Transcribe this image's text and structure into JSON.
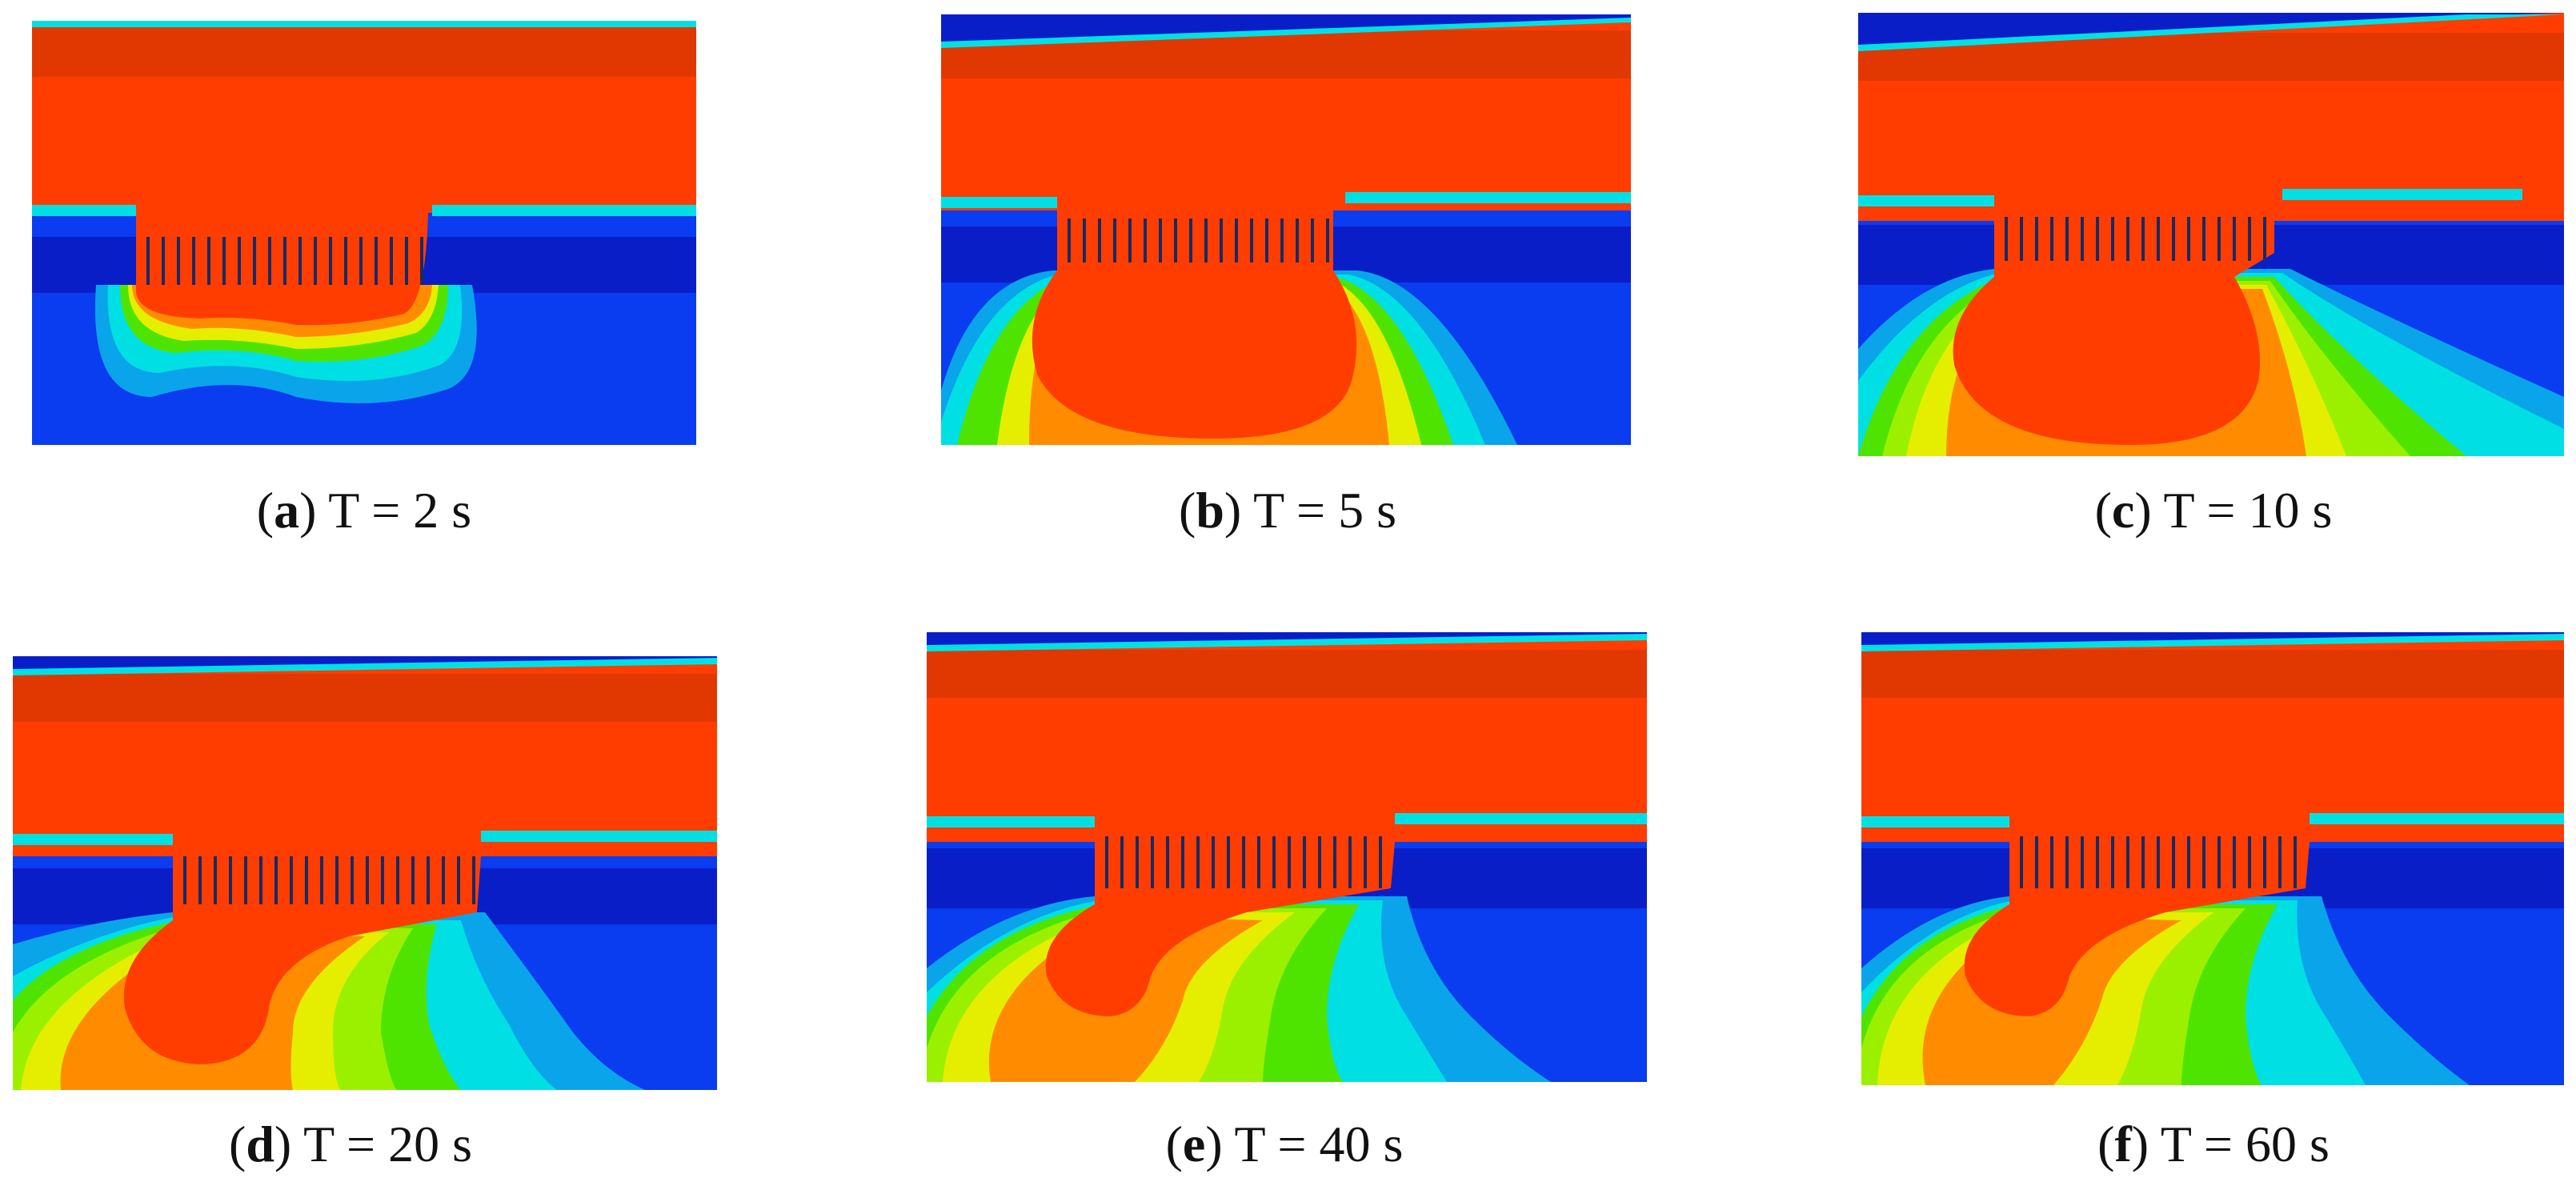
{
  "colors": {
    "red": "#ff3d00",
    "dark_red": "#e03800",
    "orange": "#ff8c00",
    "yellow": "#e6ee00",
    "green": "#4fe400",
    "lime": "#9bf000",
    "cyan": "#00e0e4",
    "light_blue": "#0aa4ea",
    "blue": "#0a3cf0",
    "navy": "#0a1ec8"
  },
  "panels": [
    {
      "id": "a",
      "letter": "a",
      "time": "T = 2 s"
    },
    {
      "id": "b",
      "letter": "b",
      "time": "T = 5 s"
    },
    {
      "id": "c",
      "letter": "c",
      "time": "T = 10 s"
    },
    {
      "id": "d",
      "letter": "d",
      "time": "T = 20 s"
    },
    {
      "id": "e",
      "letter": "e",
      "time": "T = 40 s"
    },
    {
      "id": "f",
      "letter": "f",
      "time": "T = 60 s"
    }
  ]
}
